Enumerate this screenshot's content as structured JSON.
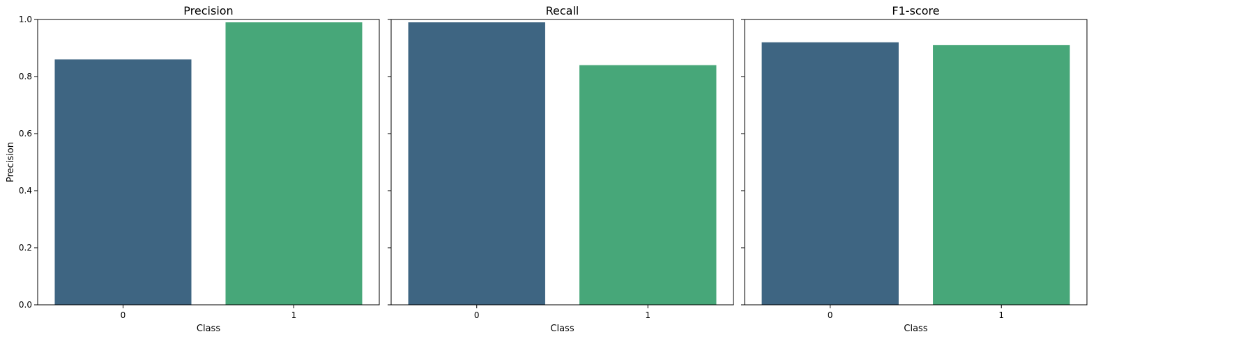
{
  "chart_data": [
    {
      "type": "bar",
      "title": "Precision",
      "xlabel": "Class",
      "ylabel": "Precision",
      "categories": [
        "0",
        "1"
      ],
      "values": [
        0.86,
        0.99
      ],
      "colors": [
        "#3e6582",
        "#47a779"
      ],
      "ylim": [
        0,
        1.0
      ],
      "yticks": [
        "0.0",
        "0.2",
        "0.4",
        "0.6",
        "0.8",
        "1.0"
      ],
      "grid": false,
      "show_ytick_labels": true
    },
    {
      "type": "bar",
      "title": "Recall",
      "xlabel": "Class",
      "ylabel": "",
      "categories": [
        "0",
        "1"
      ],
      "values": [
        0.99,
        0.84
      ],
      "colors": [
        "#3e6582",
        "#47a779"
      ],
      "ylim": [
        0,
        1.0
      ],
      "grid": false,
      "show_ytick_labels": false
    },
    {
      "type": "bar",
      "title": "F1-score",
      "xlabel": "Class",
      "ylabel": "",
      "categories": [
        "0",
        "1"
      ],
      "values": [
        0.92,
        0.91
      ],
      "colors": [
        "#3e6582",
        "#47a779"
      ],
      "ylim": [
        0,
        1.0
      ],
      "grid": false,
      "show_ytick_labels": false
    }
  ]
}
